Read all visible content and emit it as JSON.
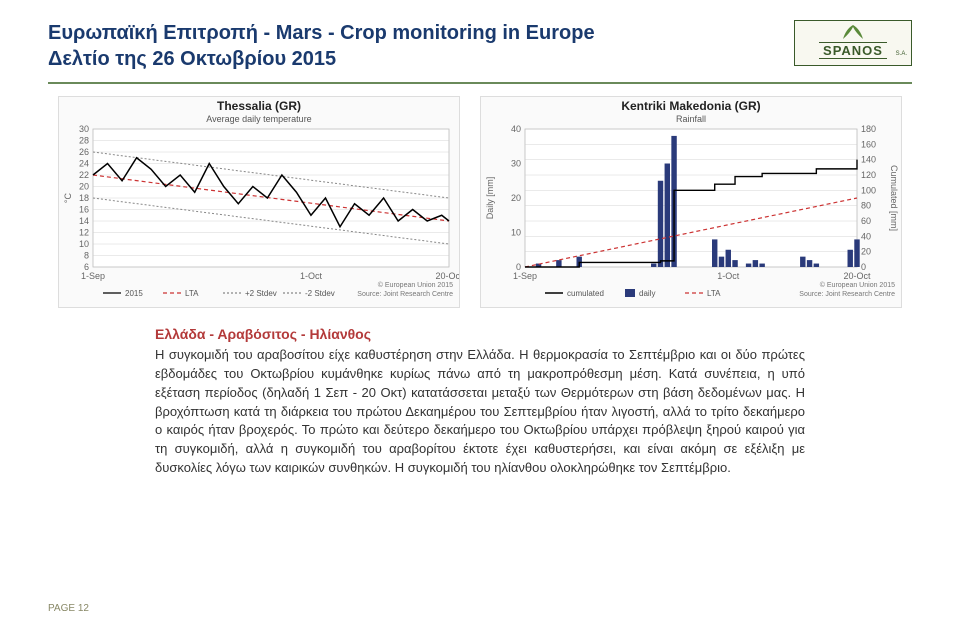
{
  "header": {
    "title_line1": "Ευρωπαϊκή Επιτροπή - Mars - Crop monitoring in Europe",
    "title_line2": "Δελτίο της 26 Οκτωβρίου 2015",
    "title_color": "#1a3a6e"
  },
  "logo": {
    "brand": "SPANOS",
    "suffix": "S.A.",
    "border_color": "#3a5a2a",
    "leaf_color": "#5a8a3a"
  },
  "rule_color": "#6a8a5a",
  "chart1": {
    "type": "line",
    "title": "Thessalia (GR)",
    "subtitle": "Average daily temperature",
    "ylabel": "°C",
    "ylim": [
      6,
      30
    ],
    "yticks": [
      6,
      8,
      10,
      12,
      14,
      16,
      18,
      20,
      22,
      24,
      26,
      28,
      30
    ],
    "xticks": [
      "1-Sep",
      "1-Oct",
      "20-Oct"
    ],
    "x_positions": [
      0,
      30,
      49
    ],
    "x_domain": 49,
    "legend": [
      "2015",
      "LTA",
      "+2 Stdev",
      "-2 Stdev"
    ],
    "legend_colors": [
      "#000000",
      "#cc3333",
      "#888888",
      "#888888"
    ],
    "legend_dash": [
      "0",
      "4 3",
      "2 2",
      "2 2"
    ],
    "series_2015": {
      "color": "#000000",
      "width": 1.5,
      "x": [
        0,
        2,
        4,
        6,
        8,
        10,
        12,
        14,
        16,
        18,
        20,
        22,
        24,
        26,
        28,
        30,
        32,
        34,
        36,
        38,
        40,
        42,
        44,
        46,
        48,
        49
      ],
      "y": [
        22,
        24,
        21,
        25,
        23,
        20,
        22,
        19,
        24,
        20,
        17,
        20,
        18,
        22,
        19,
        15,
        18,
        13,
        17,
        15,
        18,
        14,
        16,
        14,
        15,
        14
      ]
    },
    "series_lta": {
      "color": "#cc3333",
      "width": 1.2,
      "dash": "4 3",
      "x": [
        0,
        49
      ],
      "y": [
        22,
        14
      ]
    },
    "series_p2": {
      "color": "#888888",
      "width": 1,
      "dash": "2 2",
      "x": [
        0,
        49
      ],
      "y": [
        26,
        18
      ]
    },
    "series_m2": {
      "color": "#888888",
      "width": 1,
      "dash": "2 2",
      "x": [
        0,
        49
      ],
      "y": [
        18,
        10
      ]
    },
    "source1": "© European Union 2015",
    "source2": "Source: Joint Research Centre",
    "background": "#fafafa",
    "grid_color": "#cccccc"
  },
  "chart2": {
    "type": "bar+step",
    "title": "Kentriki Makedonia (GR)",
    "subtitle": "Rainfall",
    "ylabel_left": "Daily [mm]",
    "ylabel_right": "Cumulated [mm]",
    "ylim_left": [
      0,
      40
    ],
    "yticks_left": [
      0,
      10,
      20,
      30,
      40
    ],
    "ylim_right": [
      0,
      180
    ],
    "yticks_right": [
      0,
      20,
      40,
      60,
      80,
      100,
      120,
      140,
      160,
      180
    ],
    "xticks": [
      "1-Sep",
      "1-Oct",
      "20-Oct"
    ],
    "x_positions": [
      0,
      30,
      49
    ],
    "x_domain": 49,
    "legend": [
      "cumulated",
      "daily",
      "LTA"
    ],
    "legend_styles": [
      "line-black",
      "bar-navy",
      "line-red-dash"
    ],
    "bars": {
      "color": "#2a3a7a",
      "x": [
        2,
        5,
        8,
        19,
        20,
        21,
        22,
        28,
        29,
        30,
        31,
        33,
        34,
        35,
        41,
        42,
        43,
        48,
        49
      ],
      "y": [
        1,
        2,
        3,
        1,
        25,
        30,
        38,
        8,
        3,
        5,
        2,
        1,
        2,
        1,
        3,
        2,
        1,
        5,
        8
      ]
    },
    "cumulated": {
      "color": "#000000",
      "width": 1.4,
      "x": [
        0,
        8,
        20,
        22,
        28,
        31,
        35,
        43,
        49
      ],
      "y": [
        0,
        6,
        8,
        100,
        108,
        118,
        122,
        128,
        140
      ]
    },
    "lta": {
      "color": "#cc3333",
      "width": 1.2,
      "dash": "4 3",
      "x": [
        0,
        49
      ],
      "y": [
        0,
        90
      ]
    },
    "source1": "© European Union 2015",
    "source2": "Source: Joint Research Centre",
    "background": "#fafafa",
    "grid_color": "#cccccc"
  },
  "article": {
    "title": "Ελλάδα - Αραβόσιτος - Ηλίανθος",
    "title_color": "#b33a3a",
    "body": "Η συγκομιδή του αραβοσίτου είχε καθυστέρηση στην Ελλάδα. Η θερμοκρασία το Σεπτέμβριο και οι δύο πρώτες εβδομάδες του Οκτωβρίου κυμάνθηκε κυρίως πάνω από τη μακροπρόθεσμη μέση. Κατά συνέπεια, η υπό εξέταση περίοδος (δηλαδή 1 Σεπ - 20 Οκτ) κατατάσσεται μεταξύ των Θερμότερων στη βάση δεδομένων μας. Η βροχόπτωση κατά τη διάρκεια του πρώτου Δεκαημέρου του Σεπτεμβρίου ήταν λιγοστή, αλλά το τρίτο δεκαήμερο ο καιρός ήταν βροχερός. Το πρώτο και δεύτερο δεκαήμερο του Οκτωβρίου υπάρχει πρόβλεψη ξηρού καιρού για τη συγκομιδή, αλλά η συγκομιδή του αραβορίτου έκτοτε έχει καθυστερήσει, και είναι ακόμη σε εξέλιξη με δυσκολίες λόγω των καιρικών συνθηκών. Η συγκομιδή του ηλίανθου ολοκληρώθηκε τον Σεπτέμβριο."
  },
  "footer": {
    "label": "PAGE 12",
    "color": "#888866"
  }
}
